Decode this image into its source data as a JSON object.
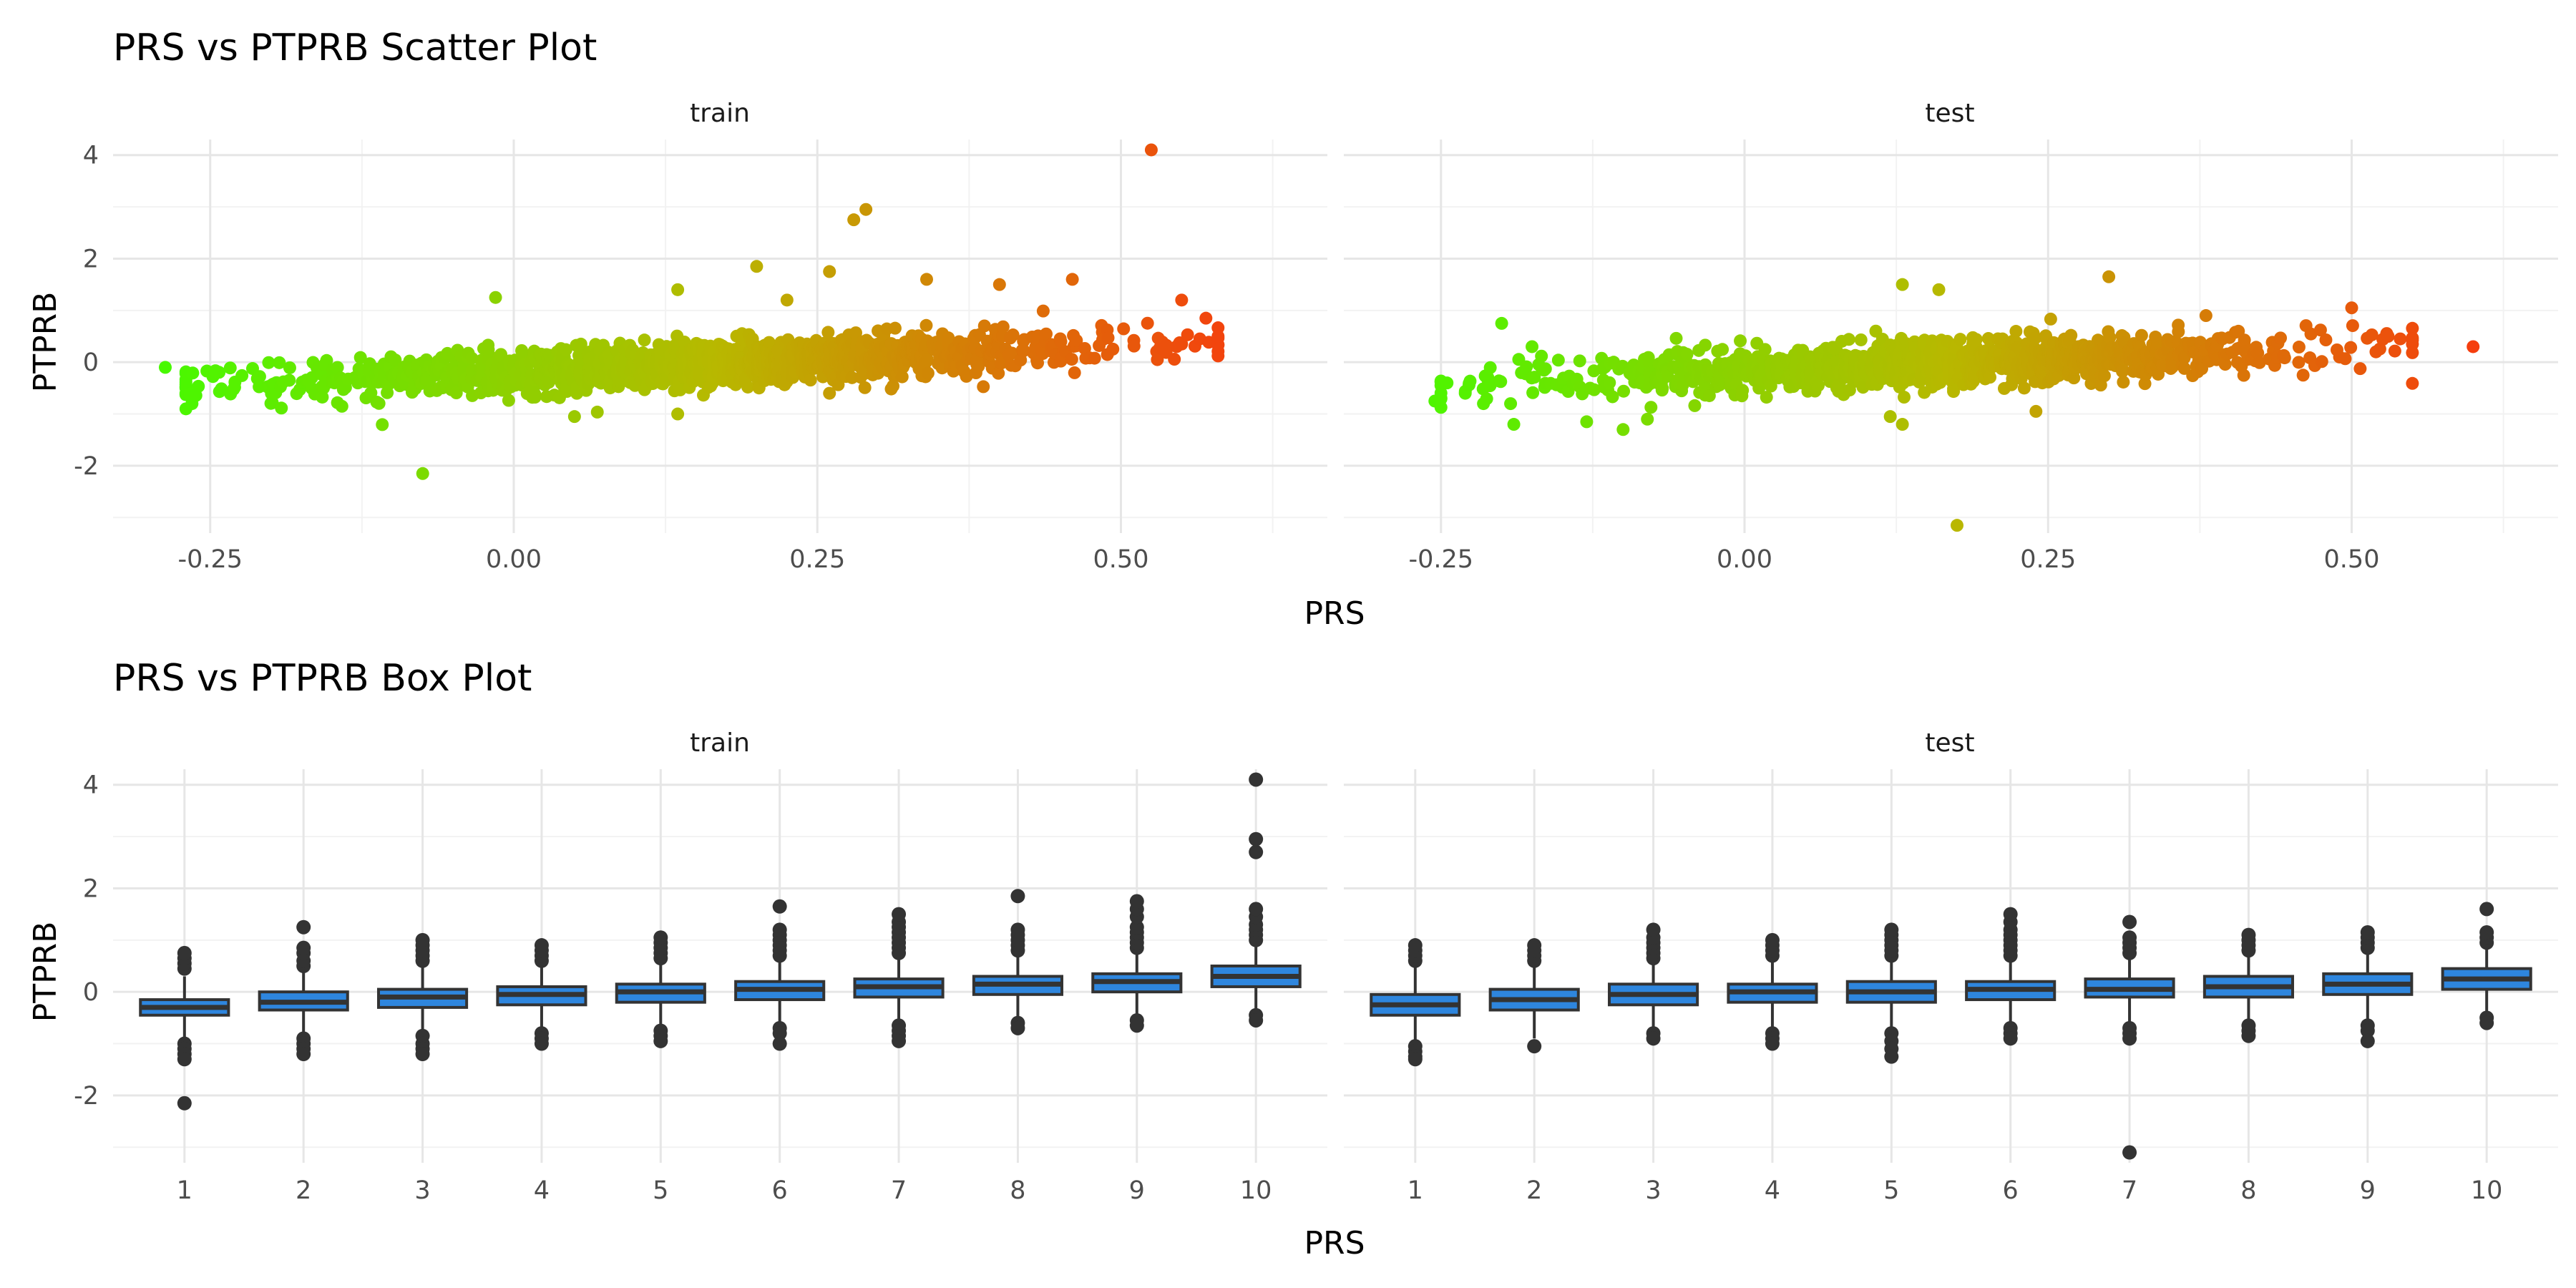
{
  "chart_data": [
    {
      "type": "scatter",
      "title": "PRS vs PTPRB Scatter Plot",
      "xlabel": "PRS",
      "ylabel": "PTPRB",
      "facets": [
        "train",
        "test"
      ],
      "xlim": [
        -0.33,
        0.67
      ],
      "ylim": [
        -3.3,
        4.3
      ],
      "x_ticks": [
        -0.25,
        0.0,
        0.25,
        0.5
      ],
      "x_tick_labels": [
        "-0.25",
        "0.00",
        "0.25",
        "0.50"
      ],
      "y_ticks": [
        -2,
        0,
        2,
        4
      ],
      "y_tick_labels": [
        "-2",
        "0",
        "2",
        "4"
      ],
      "color_scale": {
        "low": "#3dff00",
        "mid": "#b8b800",
        "high": "#ff2a10"
      },
      "grid": true,
      "legend": "none",
      "panels": [
        {
          "facet": "train",
          "trend": {
            "x_min": -0.27,
            "x_max": 0.58,
            "intercept": -0.18,
            "slope": 0.95,
            "spread": 0.22
          },
          "points": [
            [
              -0.287,
              -0.1
            ],
            [
              -0.27,
              -0.6
            ],
            [
              -0.265,
              -0.8
            ],
            [
              -0.075,
              -2.15
            ],
            [
              -0.015,
              1.25
            ],
            [
              0.135,
              1.4
            ],
            [
              0.2,
              1.85
            ],
            [
              0.225,
              1.2
            ],
            [
              0.26,
              1.75
            ],
            [
              0.28,
              2.75
            ],
            [
              0.29,
              2.95
            ],
            [
              0.34,
              1.6
            ],
            [
              0.4,
              1.5
            ],
            [
              0.46,
              1.6
            ],
            [
              0.525,
              4.1
            ],
            [
              0.55,
              1.2
            ],
            [
              0.57,
              0.85
            ],
            [
              0.58,
              0.5
            ],
            [
              0.565,
              0.45
            ],
            [
              0.55,
              0.35
            ],
            [
              0.535,
              0.25
            ],
            [
              0.53,
              0.05
            ],
            [
              0.26,
              -0.6
            ],
            [
              0.135,
              -1.0
            ],
            [
              0.05,
              -1.05
            ]
          ]
        },
        {
          "facet": "test",
          "trend": {
            "x_min": -0.25,
            "x_max": 0.55,
            "intercept": -0.17,
            "slope": 0.9,
            "spread": 0.22
          },
          "points": [
            [
              -0.255,
              -0.75
            ],
            [
              -0.245,
              -0.4
            ],
            [
              -0.23,
              -0.6
            ],
            [
              -0.215,
              -0.8
            ],
            [
              -0.2,
              0.75
            ],
            [
              -0.19,
              -1.2
            ],
            [
              -0.175,
              0.3
            ],
            [
              -0.13,
              -1.15
            ],
            [
              -0.1,
              -1.3
            ],
            [
              -0.08,
              -1.1
            ],
            [
              0.175,
              -3.15
            ],
            [
              0.13,
              -1.2
            ],
            [
              0.12,
              -1.05
            ],
            [
              0.13,
              1.5
            ],
            [
              0.16,
              1.4
            ],
            [
              0.3,
              1.65
            ],
            [
              0.24,
              -0.95
            ],
            [
              0.38,
              0.9
            ],
            [
              0.5,
              1.05
            ],
            [
              0.53,
              0.5
            ],
            [
              0.54,
              0.45
            ],
            [
              0.6,
              0.3
            ],
            [
              0.52,
              0.2
            ],
            [
              0.49,
              0.1
            ],
            [
              0.46,
              -0.25
            ]
          ]
        }
      ]
    },
    {
      "type": "box",
      "title": "PRS vs PTPRB Box Plot",
      "xlabel": "PRS",
      "ylabel": "PTPRB",
      "facets": [
        "train",
        "test"
      ],
      "categories": [
        "1",
        "2",
        "3",
        "4",
        "5",
        "6",
        "7",
        "8",
        "9",
        "10"
      ],
      "ylim": [
        -3.3,
        4.3
      ],
      "y_ticks": [
        -2,
        0,
        2,
        4
      ],
      "y_tick_labels": [
        "-2",
        "0",
        "2",
        "4"
      ],
      "fill_color": "#2e86de",
      "outline_color": "#333333",
      "grid": true,
      "legend": "none",
      "panels": [
        {
          "facet": "train",
          "boxes": [
            {
              "q1": -0.45,
              "median": -0.3,
              "q3": -0.15,
              "wmin": -0.9,
              "wmax": 0.3,
              "outliers": [
                0.45,
                0.55,
                0.65,
                0.75,
                -1.0,
                -1.1,
                -1.2,
                -1.3,
                -2.15
              ]
            },
            {
              "q1": -0.35,
              "median": -0.2,
              "q3": 0.0,
              "wmin": -0.8,
              "wmax": 0.45,
              "outliers": [
                0.5,
                0.6,
                0.75,
                0.85,
                1.25,
                -0.9,
                -1.0,
                -1.1,
                -1.2
              ]
            },
            {
              "q1": -0.3,
              "median": -0.1,
              "q3": 0.05,
              "wmin": -0.75,
              "wmax": 0.5,
              "outliers": [
                0.6,
                0.7,
                0.8,
                0.9,
                1.0,
                -0.85,
                -1.0,
                -1.1,
                -1.2
              ]
            },
            {
              "q1": -0.25,
              "median": -0.05,
              "q3": 0.1,
              "wmin": -0.75,
              "wmax": 0.55,
              "outliers": [
                0.6,
                0.7,
                0.8,
                0.9,
                -0.8,
                -0.9,
                -1.0
              ]
            },
            {
              "q1": -0.2,
              "median": 0.0,
              "q3": 0.15,
              "wmin": -0.7,
              "wmax": 0.6,
              "outliers": [
                0.65,
                0.75,
                0.85,
                0.95,
                1.05,
                -0.75,
                -0.85,
                -0.95
              ]
            },
            {
              "q1": -0.15,
              "median": 0.05,
              "q3": 0.2,
              "wmin": -0.65,
              "wmax": 0.65,
              "outliers": [
                0.7,
                0.8,
                0.9,
                1.0,
                1.1,
                1.2,
                1.65,
                -0.7,
                -0.8,
                -1.0
              ]
            },
            {
              "q1": -0.1,
              "median": 0.1,
              "q3": 0.25,
              "wmin": -0.6,
              "wmax": 0.7,
              "outliers": [
                0.75,
                0.85,
                0.95,
                1.05,
                1.15,
                1.25,
                1.35,
                1.5,
                -0.65,
                -0.75,
                -0.85,
                -0.95
              ]
            },
            {
              "q1": -0.05,
              "median": 0.15,
              "q3": 0.3,
              "wmin": -0.55,
              "wmax": 0.75,
              "outliers": [
                0.8,
                0.9,
                1.0,
                1.1,
                1.2,
                1.85,
                -0.6,
                -0.7
              ]
            },
            {
              "q1": 0.0,
              "median": 0.2,
              "q3": 0.35,
              "wmin": -0.5,
              "wmax": 0.8,
              "outliers": [
                0.85,
                0.95,
                1.05,
                1.15,
                1.25,
                1.45,
                1.6,
                1.75,
                -0.55,
                -0.65
              ]
            },
            {
              "q1": 0.1,
              "median": 0.3,
              "q3": 0.5,
              "wmin": -0.4,
              "wmax": 0.95,
              "outliers": [
                1.0,
                1.1,
                1.2,
                1.3,
                1.45,
                1.6,
                2.7,
                2.95,
                4.1,
                -0.45,
                -0.55
              ]
            }
          ]
        },
        {
          "facet": "test",
          "boxes": [
            {
              "q1": -0.45,
              "median": -0.25,
              "q3": -0.05,
              "wmin": -0.95,
              "wmax": 0.5,
              "outliers": [
                0.6,
                0.7,
                0.8,
                0.9,
                -1.05,
                -1.15,
                -1.25,
                -1.3
              ]
            },
            {
              "q1": -0.35,
              "median": -0.15,
              "q3": 0.05,
              "wmin": -0.9,
              "wmax": 0.55,
              "outliers": [
                0.6,
                0.7,
                0.8,
                0.9,
                -1.05
              ]
            },
            {
              "q1": -0.25,
              "median": -0.05,
              "q3": 0.15,
              "wmin": -0.75,
              "wmax": 0.6,
              "outliers": [
                0.65,
                0.75,
                0.85,
                0.95,
                1.05,
                1.2,
                -0.8,
                -0.9
              ]
            },
            {
              "q1": -0.2,
              "median": 0.0,
              "q3": 0.15,
              "wmin": -0.75,
              "wmax": 0.65,
              "outliers": [
                0.7,
                0.8,
                0.9,
                1.0,
                -0.8,
                -0.9,
                -1.0
              ]
            },
            {
              "q1": -0.2,
              "median": 0.0,
              "q3": 0.2,
              "wmin": -0.75,
              "wmax": 0.65,
              "outliers": [
                0.7,
                0.8,
                0.9,
                1.0,
                1.1,
                1.2,
                -0.8,
                -0.95,
                -1.1,
                -1.25
              ]
            },
            {
              "q1": -0.15,
              "median": 0.05,
              "q3": 0.2,
              "wmin": -0.65,
              "wmax": 0.65,
              "outliers": [
                0.7,
                0.8,
                0.9,
                1.0,
                1.1,
                1.2,
                1.35,
                1.5,
                -0.7,
                -0.8,
                -0.9
              ]
            },
            {
              "q1": -0.1,
              "median": 0.05,
              "q3": 0.25,
              "wmin": -0.65,
              "wmax": 0.7,
              "outliers": [
                0.75,
                0.85,
                0.95,
                1.05,
                1.35,
                -0.7,
                -0.8,
                -0.9,
                -3.1
              ]
            },
            {
              "q1": -0.1,
              "median": 0.1,
              "q3": 0.3,
              "wmin": -0.6,
              "wmax": 0.75,
              "outliers": [
                0.8,
                0.9,
                1.0,
                1.1,
                -0.65,
                -0.75,
                -0.85
              ]
            },
            {
              "q1": -0.05,
              "median": 0.15,
              "q3": 0.35,
              "wmin": -0.55,
              "wmax": 0.8,
              "outliers": [
                0.85,
                0.95,
                1.05,
                1.15,
                -0.65,
                -0.75,
                -0.95
              ]
            },
            {
              "q1": 0.05,
              "median": 0.25,
              "q3": 0.45,
              "wmin": -0.45,
              "wmax": 0.9,
              "outliers": [
                0.95,
                1.05,
                1.15,
                1.6,
                -0.5,
                -0.6
              ]
            }
          ]
        }
      ]
    }
  ]
}
